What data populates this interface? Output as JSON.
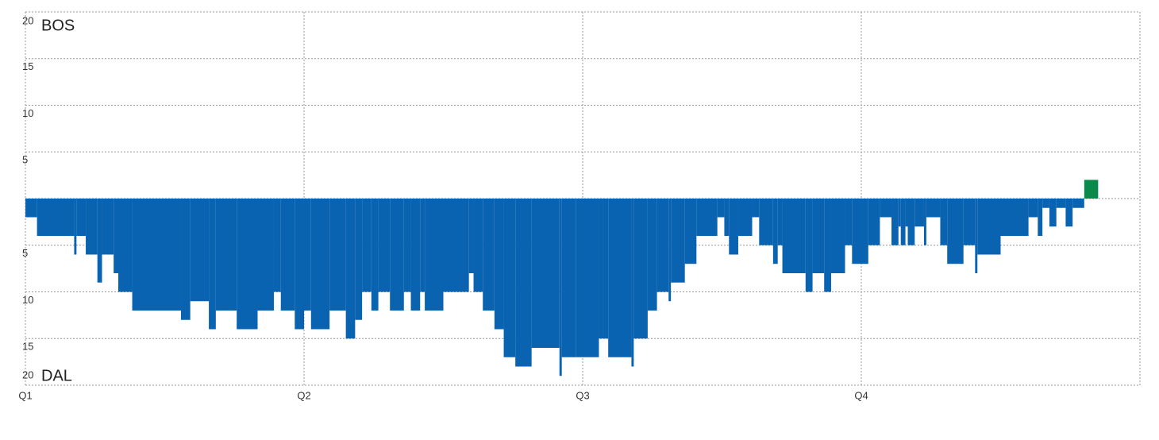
{
  "chart_data": {
    "type": "bar",
    "top_team": "BOS",
    "bottom_team": "DAL",
    "color_positive": "#0a8a4a",
    "color_negative": "#0a63b0",
    "xlim": [
      0,
      48
    ],
    "ylim": [
      -20,
      20
    ],
    "xticks": [
      {
        "value": 0,
        "label": "Q1"
      },
      {
        "value": 12,
        "label": "Q2"
      },
      {
        "value": 24,
        "label": "Q3"
      },
      {
        "value": 36,
        "label": "Q4"
      }
    ],
    "yticks": [
      {
        "value": -20,
        "label": "20"
      },
      {
        "value": -15,
        "label": "15"
      },
      {
        "value": -10,
        "label": "10"
      },
      {
        "value": -5,
        "label": "5"
      },
      5,
      10,
      15,
      20
    ],
    "grid": true,
    "x": [
      0,
      0.5,
      2.1,
      2.2,
      2.6,
      3.1,
      3.3,
      3.8,
      4.0,
      4.6,
      6.7,
      7.1,
      7.9,
      8.2,
      9.1,
      10.0,
      10.7,
      11.0,
      11.6,
      12.0,
      12.3,
      13.1,
      13.8,
      14.2,
      14.5,
      14.9,
      15.2,
      15.7,
      16.3,
      16.6,
      17.0,
      17.2,
      18.0,
      19.1,
      19.3,
      19.7,
      20.2,
      20.6,
      21.1,
      21.8,
      23.0,
      23.1,
      23.7,
      24.7,
      25.1,
      26.1,
      26.2,
      26.8,
      27.2,
      27.7,
      27.8,
      28.4,
      28.9,
      29.8,
      30.1,
      30.3,
      30.7,
      31.3,
      31.6,
      32.2,
      32.4,
      32.6,
      33.6,
      33.9,
      34.4,
      34.7,
      35.3,
      35.6,
      36.3,
      36.8,
      37.3,
      37.6,
      37.7,
      37.9,
      38.0,
      38.3,
      38.7,
      38.8,
      39.4,
      39.7,
      40.4,
      40.9,
      41.0,
      42.0,
      43.2,
      43.6,
      43.8,
      44.1,
      44.4,
      44.8,
      45.1,
      45.6,
      46.2
    ],
    "values": [
      -2,
      -4,
      -6,
      -4,
      -6,
      -9,
      -6,
      -8,
      -10,
      -12,
      -13,
      -11,
      -14,
      -12,
      -14,
      -12,
      -10,
      -12,
      -14,
      -12,
      -14,
      -12,
      -15,
      -13,
      -10,
      -12,
      -10,
      -12,
      -10,
      -12,
      -10,
      -12,
      -10,
      -8,
      -10,
      -12,
      -14,
      -17,
      -18,
      -16,
      -19,
      -17,
      -17,
      -15,
      -17,
      -18,
      -15,
      -12,
      -10,
      -11,
      -9,
      -7,
      -4,
      -2,
      -4,
      -6,
      -4,
      -2,
      -5,
      -7,
      -5,
      -8,
      -10,
      -8,
      -10,
      -8,
      -5,
      -7,
      -5,
      -2,
      -5,
      -3,
      -5,
      -3,
      -5,
      -3,
      -5,
      -2,
      -5,
      -7,
      -5,
      -8,
      -6,
      -4,
      -2,
      -4,
      -1,
      -3,
      -1,
      -3,
      -1,
      2,
      0
    ]
  }
}
